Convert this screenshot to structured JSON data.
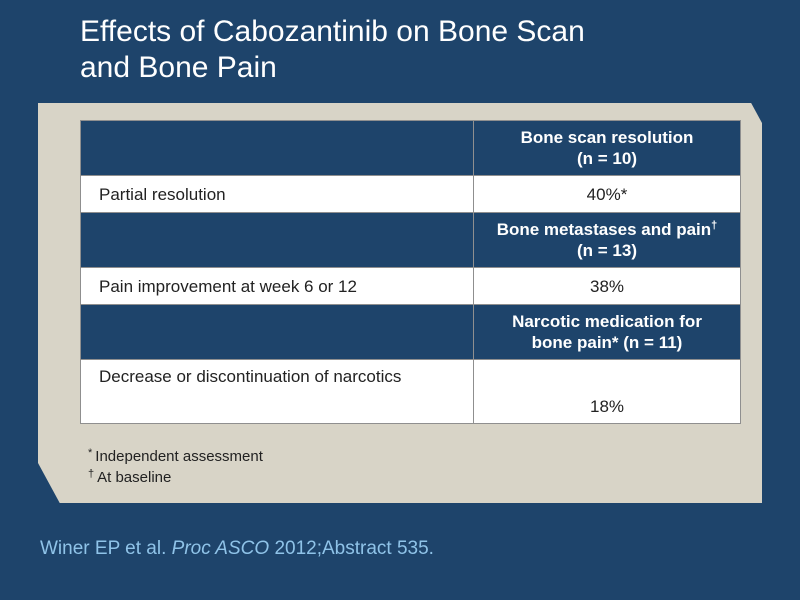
{
  "title": {
    "line1": "Effects of Cabozantinib on Bone Scan",
    "line2": "and Bone Pain"
  },
  "table": {
    "sections": [
      {
        "header": [
          "Bone scan resolution",
          "(n = 10)"
        ],
        "header_sup": "",
        "row_label": "Partial resolution",
        "row_value": "40%*"
      },
      {
        "header": [
          "Bone metastases and pain",
          "(n = 13)"
        ],
        "header_sup": "†",
        "row_label": "Pain improvement at week 6 or 12",
        "row_value": "38%"
      },
      {
        "header": [
          "Narcotic medication for",
          "bone pain* (n = 11)"
        ],
        "header_sup": "",
        "row_label": "Decrease or discontinuation of narcotics",
        "row_value": "18%"
      }
    ]
  },
  "footnotes": [
    {
      "mark": "*",
      "text": "Independent assessment"
    },
    {
      "mark": "†",
      "text": "At baseline"
    }
  ],
  "citation": {
    "authors": "Winer EP et al.",
    "journal": "Proc ASCO",
    "rest": "2012;Abstract 535."
  },
  "colors": {
    "background": "#1e446b",
    "panel": "#d8d4c7",
    "header_fill": "#1e446b",
    "citation_text": "#8fc3e8"
  }
}
